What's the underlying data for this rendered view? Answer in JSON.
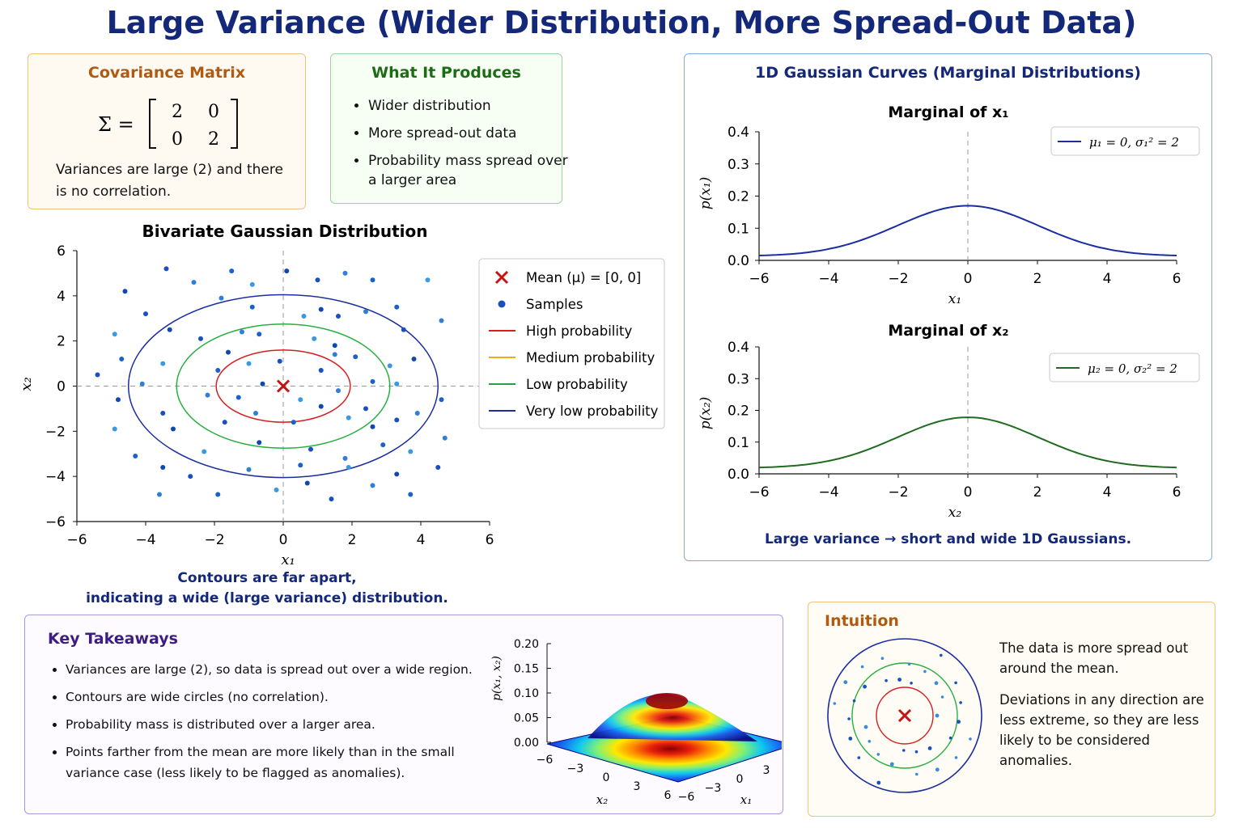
{
  "title": "Large Variance (Wider Distribution, More Spread-Out Data)",
  "covariance": {
    "title": "Covariance Matrix",
    "symbol": "Σ =",
    "matrix": [
      [
        "2",
        "0"
      ],
      [
        "0",
        "2"
      ]
    ],
    "note": "Variances are large (2) and there is no correlation."
  },
  "produces": {
    "title": "What It Produces",
    "items": [
      "Wider distribution",
      "More spread-out data",
      "Probability mass spread over a larger area"
    ]
  },
  "bivariate": {
    "title": "Bivariate Gaussian Distribution",
    "xlabel": "x₁",
    "ylabel": "x₂",
    "caption_line1": "Contours are far apart,",
    "caption_line2": "indicating a wide (large variance) distribution.",
    "legend": {
      "mean": "Mean (μ) = [0, 0]",
      "samples": "Samples",
      "high": "High probability",
      "medium": "Medium probability",
      "low": "Low probability",
      "very_low": "Very low probability"
    }
  },
  "marginals": {
    "title": "1D Gaussian Curves (Marginal Distributions)",
    "caption": "Large variance → short and wide 1D Gaussians.",
    "m1_title": "Marginal of x₁",
    "m2_title": "Marginal of x₂",
    "m1_ylabel": "p(x₁)",
    "m2_ylabel": "p(x₂)",
    "m1_xlabel": "x₁",
    "m2_xlabel": "x₂",
    "m1_legend": "μ₁ = 0,  σ₁² = 2",
    "m2_legend": "μ₂ = 0,  σ₂² = 2"
  },
  "takeaways": {
    "title": "Key Takeaways",
    "items": [
      "Variances are large (2), so data is spread out over a wide region.",
      "Contours are wide circles (no correlation).",
      "Probability mass is distributed over a larger area.",
      "Points farther from the mean are more likely than in the small variance case (less likely to be flagged as anomalies)."
    ]
  },
  "surface": {
    "zlabel": "p(x₁, x₂)",
    "xlabel": "x₁",
    "ylabel": "x₂"
  },
  "intuition": {
    "title": "Intuition",
    "p1": "The data is more spread out around the mean.",
    "p2": "Deviations in any direction are less extreme, so they are less likely to be considered anomalies."
  },
  "chart_data": [
    {
      "type": "scatter",
      "title": "Bivariate Gaussian Distribution",
      "xlabel": "x₁",
      "ylabel": "x₂",
      "xlim": [
        -6,
        6
      ],
      "ylim": [
        -6,
        6
      ],
      "xticks": [
        -6,
        -4,
        -2,
        0,
        2,
        4,
        6
      ],
      "yticks": [
        -6,
        -4,
        -2,
        0,
        2,
        4,
        6
      ],
      "mean": [
        0,
        0
      ],
      "contours": [
        {
          "name": "High probability",
          "color": "#d42020",
          "rx": 1.95,
          "ry": 1.6
        },
        {
          "name": "Low probability",
          "color": "#26b040",
          "rx": 3.1,
          "ry": 2.75
        },
        {
          "name": "Very low probability",
          "color": "#1a2ea0",
          "rx": 4.5,
          "ry": 4.05
        }
      ],
      "samples": [
        [
          -3.4,
          5.2
        ],
        [
          -2.6,
          4.6
        ],
        [
          -1.5,
          5.1
        ],
        [
          -0.9,
          4.5
        ],
        [
          0.1,
          5.1
        ],
        [
          1,
          4.7
        ],
        [
          1.8,
          5
        ],
        [
          2.6,
          4.7
        ],
        [
          4.2,
          4.7
        ],
        [
          -4.6,
          4.2
        ],
        [
          -4,
          3.2
        ],
        [
          -1.8,
          3.9
        ],
        [
          -0.9,
          3.5
        ],
        [
          0.6,
          3.1
        ],
        [
          1.1,
          3.4
        ],
        [
          1.6,
          3.1
        ],
        [
          2.4,
          3.3
        ],
        [
          3.3,
          3.5
        ],
        [
          -4.9,
          2.3
        ],
        [
          -3.3,
          2.5
        ],
        [
          -2.4,
          2.1
        ],
        [
          -1.2,
          2.4
        ],
        [
          -0.7,
          2.3
        ],
        [
          0.9,
          2.1
        ],
        [
          1.5,
          1.8
        ],
        [
          3.5,
          2.5
        ],
        [
          4.6,
          2.9
        ],
        [
          -4.7,
          1.2
        ],
        [
          -3.5,
          1
        ],
        [
          -1.6,
          1.5
        ],
        [
          -0.1,
          1.1
        ],
        [
          1.5,
          1.4
        ],
        [
          2.1,
          1.3
        ],
        [
          3.1,
          0.9
        ],
        [
          3.8,
          1.2
        ],
        [
          -5.4,
          0.5
        ],
        [
          -4.1,
          0.1
        ],
        [
          -1.9,
          0.7
        ],
        [
          -1,
          1
        ],
        [
          -0.6,
          0.1
        ],
        [
          1.1,
          0.7
        ],
        [
          1.6,
          -0.2
        ],
        [
          2.6,
          0.2
        ],
        [
          3.3,
          0.1
        ],
        [
          -4.8,
          -0.6
        ],
        [
          -3.5,
          -1.2
        ],
        [
          -2.2,
          -0.4
        ],
        [
          -1.3,
          -0.5
        ],
        [
          0.5,
          -0.6
        ],
        [
          1.1,
          -0.9
        ],
        [
          2.4,
          -1
        ],
        [
          3.9,
          -1.2
        ],
        [
          4.6,
          -0.6
        ],
        [
          -4.9,
          -1.9
        ],
        [
          -3.2,
          -1.9
        ],
        [
          -1.7,
          -1.6
        ],
        [
          -0.8,
          -1.2
        ],
        [
          0.3,
          -1.6
        ],
        [
          1.9,
          -1.4
        ],
        [
          2.6,
          -1.8
        ],
        [
          3.3,
          -1.5
        ],
        [
          4.7,
          -2.3
        ],
        [
          -4.3,
          -3.1
        ],
        [
          -2.3,
          -2.9
        ],
        [
          -0.7,
          -2.5
        ],
        [
          0.8,
          -2.8
        ],
        [
          1.8,
          -3.2
        ],
        [
          2.9,
          -2.6
        ],
        [
          3.7,
          -2.9
        ],
        [
          -3.5,
          -3.6
        ],
        [
          -2.7,
          -4
        ],
        [
          -1,
          -3.7
        ],
        [
          0.5,
          -3.5
        ],
        [
          1.9,
          -3.6
        ],
        [
          3.3,
          -3.9
        ],
        [
          4.5,
          -3.6
        ],
        [
          -3.6,
          -4.8
        ],
        [
          -1.9,
          -4.8
        ],
        [
          -0.2,
          -4.6
        ],
        [
          0.7,
          -4.3
        ],
        [
          1.4,
          -5
        ],
        [
          2.6,
          -4.4
        ],
        [
          3.7,
          -4.8
        ]
      ]
    },
    {
      "type": "line",
      "title": "Marginal of x₁",
      "xlabel": "x₁",
      "ylabel": "p(x₁)",
      "xlim": [
        -6,
        6
      ],
      "ylim": [
        0,
        0.4
      ],
      "xticks": [
        -6,
        -4,
        -2,
        0,
        2,
        4,
        6
      ],
      "yticks": [
        0.0,
        0.1,
        0.2,
        0.3,
        0.4
      ],
      "series": [
        {
          "name": "μ₁ = 0,  σ₁² = 2",
          "mean": 0,
          "variance": 2,
          "peak": 0.17,
          "tail_at_6": 0.015,
          "color": "#1a2ea0"
        }
      ]
    },
    {
      "type": "line",
      "title": "Marginal of x₂",
      "xlabel": "x₂",
      "ylabel": "p(x₂)",
      "xlim": [
        -6,
        6
      ],
      "ylim": [
        0,
        0.4
      ],
      "xticks": [
        -6,
        -4,
        -2,
        0,
        2,
        4,
        6
      ],
      "yticks": [
        0.0,
        0.1,
        0.2,
        0.3,
        0.4
      ],
      "series": [
        {
          "name": "μ₂ = 0,  σ₂² = 2",
          "mean": 0,
          "variance": 2,
          "peak": 0.178,
          "tail_at_6": 0.02,
          "color": "#1f6b1f"
        }
      ]
    },
    {
      "type": "heatmap",
      "surface": "3d",
      "zlabel": "p(x₁, x₂)",
      "xlabel": "x₁",
      "ylabel": "x₂",
      "zlim": [
        0,
        0.2
      ],
      "zticks": [
        0.0,
        0.05,
        0.1,
        0.15,
        0.2
      ],
      "x1ticks": [
        -6,
        -3,
        0,
        3,
        6
      ],
      "x2ticks": [
        -6,
        -3,
        0,
        3,
        6
      ]
    }
  ]
}
